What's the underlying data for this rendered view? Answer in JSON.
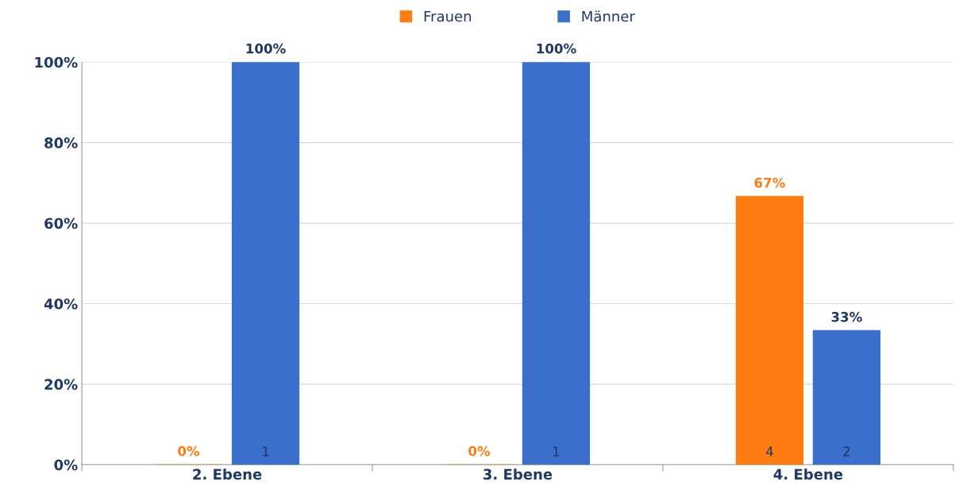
{
  "chart_data": {
    "type": "bar",
    "categories": [
      "2. Ebene",
      "3. Ebene",
      "4. Ebene"
    ],
    "series": [
      {
        "name": "Frauen",
        "color": "#ff7c12",
        "values": [
          0,
          0,
          66.67
        ],
        "value_labels": [
          "0%",
          "0%",
          "67%"
        ]
      },
      {
        "name": "Männer",
        "color": "#3a6fcc",
        "values": [
          100,
          100,
          33.33
        ],
        "value_labels": [
          "100%",
          "100%",
          "33%"
        ]
      }
    ],
    "annotations": [
      "1",
      "1",
      "4",
      "2"
    ],
    "ylim": [
      0,
      100
    ],
    "yticks": [
      {
        "value": 0,
        "label": "0%"
      },
      {
        "value": 20,
        "label": "20%"
      },
      {
        "value": 40,
        "label": "40%"
      },
      {
        "value": 60,
        "label": "60%"
      },
      {
        "value": 80,
        "label": "80%"
      },
      {
        "value": 100,
        "label": "100%"
      }
    ],
    "grid": "y",
    "legend": "top"
  }
}
